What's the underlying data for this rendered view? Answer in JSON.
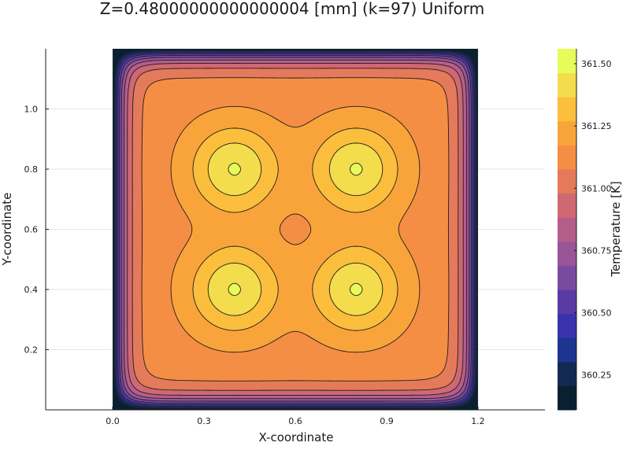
{
  "chart_data": {
    "type": "heatmap",
    "subtype": "filled-contour",
    "title": "Z=0.48000000000000004 [mm] (k=97) Uniform",
    "xlabel": "X-coordinate",
    "ylabel": "Y-coordinate",
    "colorbar_label": "Temperature [K]",
    "xlim": [
      -0.22,
      1.42
    ],
    "ylim": [
      0.0,
      1.2
    ],
    "domain": {
      "x": [
        0.0,
        1.2
      ],
      "y": [
        0.0,
        1.2
      ]
    },
    "xticks": [
      0.0,
      0.3,
      0.6,
      0.9,
      1.2
    ],
    "xtick_labels": [
      "0.0",
      "0.3",
      "0.6",
      "0.9",
      "1.2"
    ],
    "yticks": [
      0.2,
      0.4,
      0.6,
      0.8,
      1.0
    ],
    "ytick_labels": [
      "0.2",
      "0.4",
      "0.6",
      "0.8",
      "1.0"
    ],
    "colorbar_range": [
      360.11,
      361.56
    ],
    "colorbar_ticks": [
      360.25,
      360.5,
      360.75,
      361.0,
      361.25,
      361.5
    ],
    "colorbar_tick_labels": [
      "360.25",
      "360.50",
      "360.75",
      "361.00",
      "361.25",
      "361.50"
    ],
    "colormap": "thermal",
    "colormap_stops": [
      "#0a2030",
      "#122a52",
      "#1d3590",
      "#3a31ad",
      "#5a3ba6",
      "#7a4aa0",
      "#9a5599",
      "#b65e8a",
      "#cf6873",
      "#e57a5a",
      "#f48e45",
      "#f9a43b",
      "#fbbe3d",
      "#f3dd4c",
      "#e8fb5a"
    ],
    "hot_spots": [
      {
        "x": 0.4,
        "y": 0.4
      },
      {
        "x": 0.8,
        "y": 0.4
      },
      {
        "x": 0.4,
        "y": 0.8
      },
      {
        "x": 0.8,
        "y": 0.8
      }
    ],
    "grid": true,
    "legend": "colorbar-right"
  }
}
